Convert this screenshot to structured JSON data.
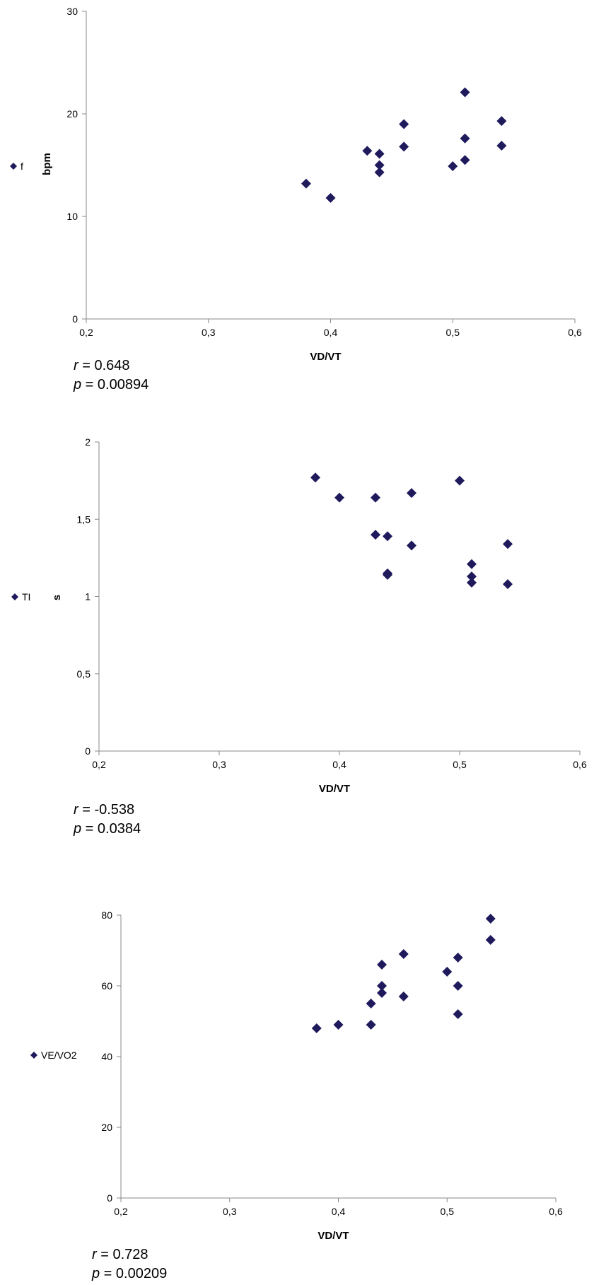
{
  "chart_data": [
    {
      "type": "scatter",
      "title": "",
      "xlabel": "VD/VT",
      "ylabel": "bpm",
      "xlim": [
        0.2,
        0.6
      ],
      "ylim": [
        0,
        30
      ],
      "xticks": [
        "0,2",
        "0,3",
        "0,4",
        "0,5",
        "0,6"
      ],
      "yticks": [
        "0",
        "10",
        "20",
        "30"
      ],
      "legend": "left",
      "grid": false,
      "marker_color": "#1F1A5C",
      "series": [
        {
          "name": "f",
          "x": [
            0.38,
            0.4,
            0.43,
            0.44,
            0.44,
            0.44,
            0.46,
            0.46,
            0.5,
            0.51,
            0.51,
            0.51,
            0.54,
            0.54
          ],
          "y": [
            13.2,
            11.8,
            16.4,
            16.1,
            15.0,
            14.3,
            19.0,
            16.8,
            14.9,
            22.1,
            17.6,
            15.5,
            19.3,
            16.9
          ]
        }
      ],
      "stats": {
        "r_label": "r",
        "r_text": " = 0.648",
        "p_label": "p",
        "p_text": " = 0.00894"
      }
    },
    {
      "type": "scatter",
      "title": "",
      "xlabel": "VD/VT",
      "ylabel": "s",
      "xlim": [
        0.2,
        0.6
      ],
      "ylim": [
        0,
        2
      ],
      "xticks": [
        "0,2",
        "0,3",
        "0,4",
        "0,5",
        "0,6"
      ],
      "yticks": [
        "0",
        "0,5",
        "1",
        "1,5",
        "2"
      ],
      "legend": "left",
      "grid": false,
      "marker_color": "#1F1A5C",
      "series": [
        {
          "name": "TI",
          "x": [
            0.38,
            0.4,
            0.43,
            0.43,
            0.44,
            0.44,
            0.44,
            0.46,
            0.46,
            0.5,
            0.51,
            0.51,
            0.51,
            0.54,
            0.54
          ],
          "y": [
            1.77,
            1.64,
            1.64,
            1.4,
            1.39,
            1.15,
            1.14,
            1.67,
            1.33,
            1.75,
            1.21,
            1.13,
            1.09,
            1.34,
            1.08
          ]
        }
      ],
      "stats": {
        "r_label": "r",
        "r_text": " = -0.538",
        "p_label": "p",
        "p_text": " = 0.0384"
      }
    },
    {
      "type": "scatter",
      "title": "",
      "xlabel": "VD/VT",
      "ylabel": "",
      "xlim": [
        0.2,
        0.6
      ],
      "ylim": [
        0,
        80
      ],
      "xticks": [
        "0,2",
        "0,3",
        "0,4",
        "0,5",
        "0,6"
      ],
      "yticks": [
        "0",
        "20",
        "40",
        "60",
        "80"
      ],
      "legend": "left",
      "grid": false,
      "marker_color": "#1F1A5C",
      "series": [
        {
          "name": "VE/VO2",
          "x": [
            0.38,
            0.4,
            0.43,
            0.43,
            0.44,
            0.44,
            0.44,
            0.46,
            0.46,
            0.5,
            0.51,
            0.51,
            0.51,
            0.54,
            0.54
          ],
          "y": [
            48,
            49,
            49,
            55,
            66,
            60,
            58,
            69,
            57,
            64,
            68,
            60,
            52,
            79,
            73
          ]
        }
      ],
      "stats": {
        "r_label": "r",
        "r_text": " = 0.728",
        "p_label": "p",
        "p_text": " = 0.00209"
      }
    }
  ]
}
